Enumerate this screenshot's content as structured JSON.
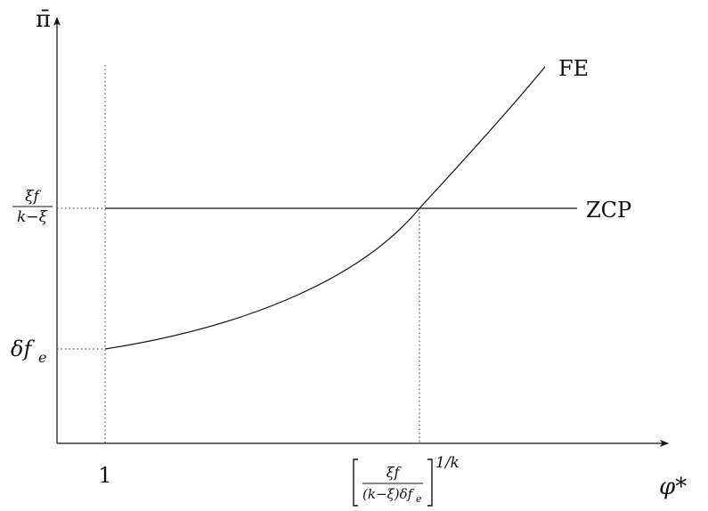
{
  "axes": {
    "y_label": "π̄",
    "x_label": "φ*"
  },
  "curves": {
    "fe_label": "FE",
    "zcp_label": "ZCP"
  },
  "y_ticks": {
    "upper": {
      "num": "ξf",
      "den": "k−ξ"
    },
    "lower": {
      "base": "δf",
      "sub": "e"
    }
  },
  "x_ticks": {
    "left": "1",
    "right": {
      "num": "ξf",
      "den": "(k−ξ)δf",
      "den_sub": "e",
      "power": "1/k"
    }
  }
}
